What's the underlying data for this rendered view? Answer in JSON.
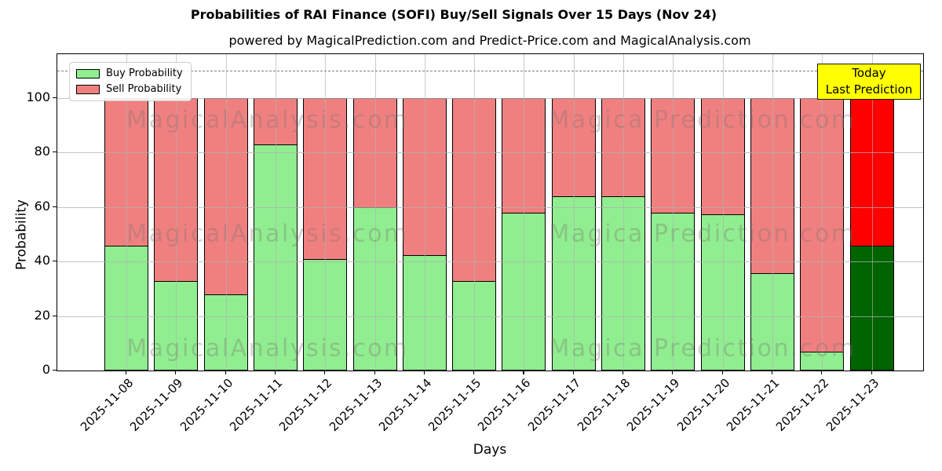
{
  "title": "Probabilities of RAI Finance (SOFI) Buy/Sell Signals Over 15 Days (Nov 24)",
  "subtitle": "powered by MagicalPrediction.com and Predict-Price.com and MagicalAnalysis.com",
  "annotation_box": {
    "line1": "Today",
    "line2": "Last Prediction",
    "bg_color": "#ffff00"
  },
  "watermarks": {
    "left": "MagicalAnalysis.com",
    "right": "Magica Prediction.com"
  },
  "legend": [
    {
      "label": "Buy Probability",
      "color": "#90ee90"
    },
    {
      "label": "Sell Probability",
      "color": "#f08080"
    }
  ],
  "chart_data": {
    "type": "bar",
    "stacked": true,
    "title": "Probabilities of RAI Finance (SOFI) Buy/Sell Signals Over 15 Days (Nov 24)",
    "xlabel": "Days",
    "ylabel": "Probability",
    "ylim": [
      0,
      116
    ],
    "yticks": [
      0,
      20,
      40,
      60,
      80,
      100
    ],
    "grid": true,
    "legend_position": "upper left",
    "dashed_line_y": 110,
    "categories": [
      "2025-11-08",
      "2025-11-09",
      "2025-11-10",
      "2025-11-11",
      "2025-11-12",
      "2025-11-13",
      "2025-11-14",
      "2025-11-15",
      "2025-11-16",
      "2025-11-17",
      "2025-11-18",
      "2025-11-19",
      "2025-11-20",
      "2025-11-21",
      "2025-11-22",
      "2025-11-23"
    ],
    "series": [
      {
        "name": "Buy Probability",
        "color": "#90ee90",
        "values": [
          46,
          33,
          28,
          83,
          41,
          60,
          42.5,
          33,
          58,
          64,
          64,
          58,
          57.5,
          36,
          7,
          46
        ]
      },
      {
        "name": "Sell Probability",
        "color": "#f08080",
        "values": [
          54,
          67,
          72,
          17,
          59,
          40,
          57.5,
          67,
          42,
          36,
          36,
          42,
          42.5,
          64,
          93,
          54
        ]
      }
    ],
    "final_bar_colors": {
      "buy": "#006400",
      "sell": "#ff0000"
    },
    "bar_edge_color": "#000000"
  }
}
